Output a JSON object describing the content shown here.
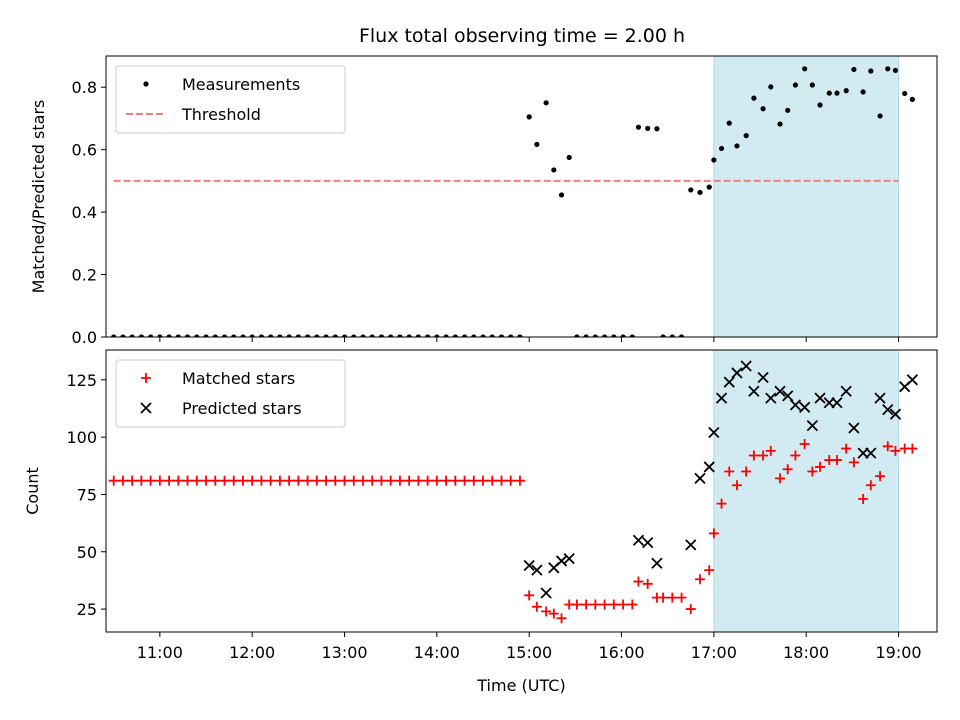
{
  "figure": {
    "title": "Flux total observing time = 2.00 h"
  },
  "chart_data": [
    {
      "type": "scatter",
      "name": "ratio-panel",
      "xlim": [
        "10:25",
        "19:25"
      ],
      "ylim": [
        0,
        0.9
      ],
      "ylabel": "Matched/Predicted stars",
      "yticks": [
        0,
        0.2,
        0.4,
        0.6,
        0.8
      ],
      "ytick_labels": [
        "0.0",
        "0.2",
        "0.4",
        "0.6",
        "0.8"
      ],
      "shaded_region": {
        "x": [
          "17:00",
          "19:00"
        ],
        "color": "#add8e6"
      },
      "legend": {
        "placement": "upper-left",
        "entries": [
          "Measurements",
          "Threshold"
        ]
      },
      "series": [
        {
          "name": "Measurements",
          "marker": "dot",
          "color": "#000000",
          "points": [
            [
              "10:30",
              0
            ],
            [
              "10:36",
              0
            ],
            [
              "10:42",
              0
            ],
            [
              "10:48",
              0
            ],
            [
              "10:54",
              0
            ],
            [
              "11:00",
              0
            ],
            [
              "11:06",
              0
            ],
            [
              "11:12",
              0
            ],
            [
              "11:18",
              0
            ],
            [
              "11:24",
              0
            ],
            [
              "11:30",
              0
            ],
            [
              "11:36",
              0
            ],
            [
              "11:42",
              0
            ],
            [
              "11:48",
              0
            ],
            [
              "11:54",
              0
            ],
            [
              "12:00",
              0
            ],
            [
              "12:06",
              0
            ],
            [
              "12:12",
              0
            ],
            [
              "12:18",
              0
            ],
            [
              "12:24",
              0
            ],
            [
              "12:30",
              0
            ],
            [
              "12:36",
              0
            ],
            [
              "12:42",
              0
            ],
            [
              "12:48",
              0
            ],
            [
              "12:54",
              0
            ],
            [
              "13:00",
              0
            ],
            [
              "13:06",
              0
            ],
            [
              "13:12",
              0
            ],
            [
              "13:18",
              0
            ],
            [
              "13:24",
              0
            ],
            [
              "13:30",
              0
            ],
            [
              "13:36",
              0
            ],
            [
              "13:42",
              0
            ],
            [
              "13:48",
              0
            ],
            [
              "13:54",
              0
            ],
            [
              "14:00",
              0
            ],
            [
              "14:06",
              0
            ],
            [
              "14:12",
              0
            ],
            [
              "14:18",
              0
            ],
            [
              "14:24",
              0
            ],
            [
              "14:30",
              0
            ],
            [
              "14:36",
              0
            ],
            [
              "14:42",
              0
            ],
            [
              "14:48",
              0
            ],
            [
              "14:54",
              0
            ],
            [
              "15:00",
              0.705
            ],
            [
              "15:05",
              0.617
            ],
            [
              "15:11",
              0.75
            ],
            [
              "15:16",
              0.535
            ],
            [
              "15:21",
              0.455
            ],
            [
              "15:26",
              0.575
            ],
            [
              "15:31",
              0
            ],
            [
              "15:37",
              0
            ],
            [
              "15:43",
              0
            ],
            [
              "15:49",
              0
            ],
            [
              "15:55",
              0
            ],
            [
              "16:01",
              0
            ],
            [
              "16:07",
              0
            ],
            [
              "16:11",
              0.672
            ],
            [
              "16:17",
              0.668
            ],
            [
              "16:23",
              0.667
            ],
            [
              "16:27",
              0
            ],
            [
              "16:33",
              0
            ],
            [
              "16:39",
              0
            ],
            [
              "16:45",
              0.471
            ],
            [
              "16:51",
              0.463
            ],
            [
              "16:57",
              0.48
            ],
            [
              "17:00",
              0.567
            ],
            [
              "17:05",
              0.604
            ],
            [
              "17:10",
              0.685
            ],
            [
              "17:15",
              0.612
            ],
            [
              "17:21",
              0.645
            ],
            [
              "17:26",
              0.765
            ],
            [
              "17:32",
              0.731
            ],
            [
              "17:37",
              0.801
            ],
            [
              "17:43",
              0.682
            ],
            [
              "17:48",
              0.726
            ],
            [
              "17:53",
              0.807
            ],
            [
              "17:59",
              0.859
            ],
            [
              "18:04",
              0.807
            ],
            [
              "18:09",
              0.743
            ],
            [
              "18:15",
              0.781
            ],
            [
              "18:20",
              0.781
            ],
            [
              "18:26",
              0.789
            ],
            [
              "18:31",
              0.857
            ],
            [
              "18:37",
              0.785
            ],
            [
              "18:42",
              0.852
            ],
            [
              "18:48",
              0.708
            ],
            [
              "18:53",
              0.859
            ],
            [
              "18:58",
              0.854
            ],
            [
              "19:04",
              0.78
            ],
            [
              "19:09",
              0.761
            ]
          ]
        },
        {
          "name": "Threshold",
          "style": "dashed",
          "color": "#f08080",
          "line": [
            [
              "10:30",
              0.5
            ],
            [
              "19:00",
              0.5
            ]
          ]
        }
      ]
    },
    {
      "type": "scatter",
      "name": "count-panel",
      "xlim": [
        "10:25",
        "19:25"
      ],
      "ylim": [
        15,
        138
      ],
      "xlabel": "Time (UTC)",
      "ylabel": "Count",
      "xtick_labels": [
        "11:00",
        "12:00",
        "13:00",
        "14:00",
        "15:00",
        "16:00",
        "17:00",
        "18:00",
        "19:00"
      ],
      "yticks": [
        25,
        50,
        75,
        100,
        125
      ],
      "ytick_labels": [
        "25",
        "50",
        "75",
        "100",
        "125"
      ],
      "shaded_region": {
        "x": [
          "17:00",
          "19:00"
        ],
        "color": "#add8e6"
      },
      "legend": {
        "placement": "upper-left",
        "entries": [
          "Matched stars",
          "Predicted stars"
        ]
      },
      "series": [
        {
          "name": "Matched stars",
          "marker": "plus",
          "color": "#ff0000",
          "points": [
            [
              "10:30",
              81
            ],
            [
              "10:36",
              81
            ],
            [
              "10:42",
              81
            ],
            [
              "10:48",
              81
            ],
            [
              "10:54",
              81
            ],
            [
              "11:00",
              81
            ],
            [
              "11:06",
              81
            ],
            [
              "11:12",
              81
            ],
            [
              "11:18",
              81
            ],
            [
              "11:24",
              81
            ],
            [
              "11:30",
              81
            ],
            [
              "11:36",
              81
            ],
            [
              "11:42",
              81
            ],
            [
              "11:48",
              81
            ],
            [
              "11:54",
              81
            ],
            [
              "12:00",
              81
            ],
            [
              "12:06",
              81
            ],
            [
              "12:12",
              81
            ],
            [
              "12:18",
              81
            ],
            [
              "12:24",
              81
            ],
            [
              "12:30",
              81
            ],
            [
              "12:36",
              81
            ],
            [
              "12:42",
              81
            ],
            [
              "12:48",
              81
            ],
            [
              "12:54",
              81
            ],
            [
              "13:00",
              81
            ],
            [
              "13:06",
              81
            ],
            [
              "13:12",
              81
            ],
            [
              "13:18",
              81
            ],
            [
              "13:24",
              81
            ],
            [
              "13:30",
              81
            ],
            [
              "13:36",
              81
            ],
            [
              "13:42",
              81
            ],
            [
              "13:48",
              81
            ],
            [
              "13:54",
              81
            ],
            [
              "14:00",
              81
            ],
            [
              "14:06",
              81
            ],
            [
              "14:12",
              81
            ],
            [
              "14:18",
              81
            ],
            [
              "14:24",
              81
            ],
            [
              "14:30",
              81
            ],
            [
              "14:36",
              81
            ],
            [
              "14:42",
              81
            ],
            [
              "14:48",
              81
            ],
            [
              "14:54",
              81
            ],
            [
              "15:00",
              31
            ],
            [
              "15:05",
              26
            ],
            [
              "15:11",
              24
            ],
            [
              "15:16",
              23
            ],
            [
              "15:21",
              21
            ],
            [
              "15:26",
              27
            ],
            [
              "15:31",
              27
            ],
            [
              "15:37",
              27
            ],
            [
              "15:43",
              27
            ],
            [
              "15:49",
              27
            ],
            [
              "15:55",
              27
            ],
            [
              "16:01",
              27
            ],
            [
              "16:07",
              27
            ],
            [
              "16:11",
              37
            ],
            [
              "16:17",
              36
            ],
            [
              "16:23",
              30
            ],
            [
              "16:27",
              30
            ],
            [
              "16:33",
              30
            ],
            [
              "16:39",
              30
            ],
            [
              "16:45",
              25
            ],
            [
              "16:51",
              38
            ],
            [
              "16:57",
              42
            ],
            [
              "17:00",
              58
            ],
            [
              "17:05",
              71
            ],
            [
              "17:10",
              85
            ],
            [
              "17:15",
              79
            ],
            [
              "17:21",
              85
            ],
            [
              "17:26",
              92
            ],
            [
              "17:32",
              92
            ],
            [
              "17:37",
              94
            ],
            [
              "17:43",
              82
            ],
            [
              "17:48",
              86
            ],
            [
              "17:53",
              92
            ],
            [
              "17:59",
              97
            ],
            [
              "18:04",
              85
            ],
            [
              "18:09",
              87
            ],
            [
              "18:15",
              90
            ],
            [
              "18:20",
              90
            ],
            [
              "18:26",
              95
            ],
            [
              "18:31",
              89
            ],
            [
              "18:37",
              73
            ],
            [
              "18:42",
              79
            ],
            [
              "18:48",
              83
            ],
            [
              "18:53",
              96
            ],
            [
              "18:58",
              94
            ],
            [
              "19:04",
              95
            ],
            [
              "19:09",
              95
            ]
          ]
        },
        {
          "name": "Predicted stars",
          "marker": "x",
          "color": "#000000",
          "points": [
            [
              "15:00",
              44
            ],
            [
              "15:05",
              42
            ],
            [
              "15:11",
              32
            ],
            [
              "15:16",
              43
            ],
            [
              "15:21",
              46
            ],
            [
              "15:26",
              47
            ],
            [
              "16:11",
              55
            ],
            [
              "16:17",
              54
            ],
            [
              "16:23",
              45
            ],
            [
              "16:45",
              53
            ],
            [
              "16:51",
              82
            ],
            [
              "16:57",
              87
            ],
            [
              "17:00",
              102
            ],
            [
              "17:05",
              117
            ],
            [
              "17:10",
              124
            ],
            [
              "17:15",
              128
            ],
            [
              "17:21",
              131
            ],
            [
              "17:26",
              120
            ],
            [
              "17:32",
              126
            ],
            [
              "17:37",
              117
            ],
            [
              "17:43",
              120
            ],
            [
              "17:48",
              118
            ],
            [
              "17:53",
              114
            ],
            [
              "17:59",
              113
            ],
            [
              "18:04",
              105
            ],
            [
              "18:09",
              117
            ],
            [
              "18:15",
              115
            ],
            [
              "18:20",
              115
            ],
            [
              "18:26",
              120
            ],
            [
              "18:31",
              104
            ],
            [
              "18:37",
              93
            ],
            [
              "18:42",
              93
            ],
            [
              "18:48",
              117
            ],
            [
              "18:53",
              112
            ],
            [
              "18:58",
              110
            ],
            [
              "19:04",
              122
            ],
            [
              "19:09",
              125
            ]
          ]
        }
      ]
    }
  ]
}
